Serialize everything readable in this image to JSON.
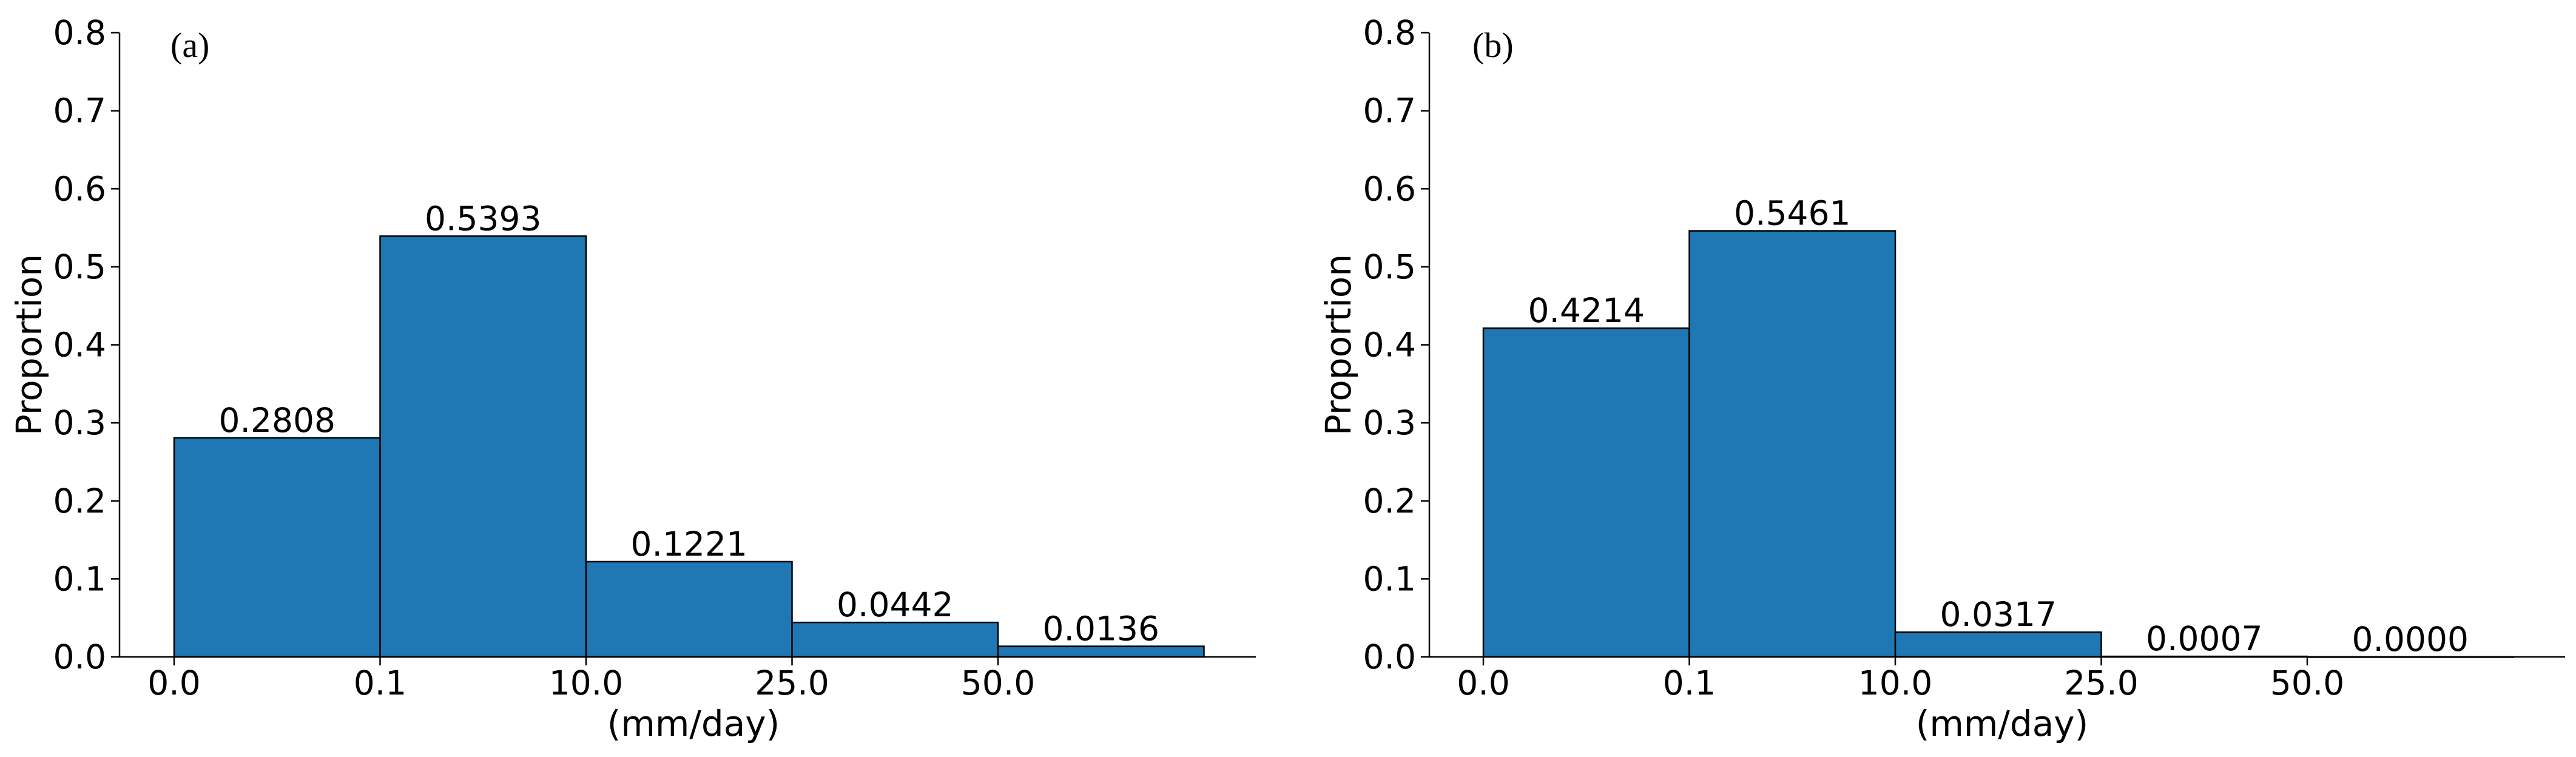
{
  "chart_data": [
    {
      "type": "bar",
      "panel_label": "(a)",
      "xlabel": "(mm/day)",
      "ylabel": "Proportion",
      "ylim": [
        0,
        0.8
      ],
      "y_ticks": [
        "0.0",
        "0.1",
        "0.2",
        "0.3",
        "0.4",
        "0.5",
        "0.6",
        "0.7",
        "0.8"
      ],
      "x_tick_labels": [
        "0.0",
        "0.1",
        "10.0",
        "25.0",
        "50.0"
      ],
      "values": [
        0.2808,
        0.5393,
        0.1221,
        0.0442,
        0.0136
      ],
      "value_labels": [
        "0.2808",
        "0.5393",
        "0.1221",
        "0.0442",
        "0.0136"
      ],
      "bar_color": "#1f77b4",
      "edge_color": "#000000"
    },
    {
      "type": "bar",
      "panel_label": "(b)",
      "xlabel": "(mm/day)",
      "ylabel": "Proportion",
      "ylim": [
        0,
        0.8
      ],
      "y_ticks": [
        "0.0",
        "0.1",
        "0.2",
        "0.3",
        "0.4",
        "0.5",
        "0.6",
        "0.7",
        "0.8"
      ],
      "x_tick_labels": [
        "0.0",
        "0.1",
        "10.0",
        "25.0",
        "50.0"
      ],
      "values": [
        0.4214,
        0.5461,
        0.0317,
        0.0007,
        0.0
      ],
      "value_labels": [
        "0.4214",
        "0.5461",
        "0.0317",
        "0.0007",
        "0.0000"
      ],
      "bar_color": "#1f77b4",
      "edge_color": "#000000"
    }
  ]
}
